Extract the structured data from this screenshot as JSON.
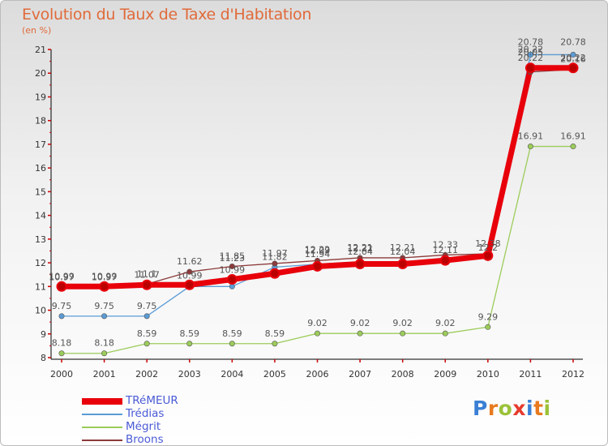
{
  "header": {
    "title": "Evolution du Taux de Taxe d'Habitation",
    "subtitle": "(en %)"
  },
  "logo": {
    "text": "Proxiti",
    "letter_colors": [
      "#3a7fd4",
      "#e87a1f",
      "#9bc23a",
      "#e63b2e",
      "#3a7fd4",
      "#e87a1f",
      "#9bc23a"
    ]
  },
  "chart_data": {
    "type": "line",
    "title": "Evolution du Taux de Taxe d'Habitation",
    "subtitle": "(en %)",
    "x": [
      "2000",
      "2001",
      "2002",
      "2003",
      "2004",
      "2005",
      "2006",
      "2007",
      "2008",
      "2009",
      "2010",
      "2011",
      "2012"
    ],
    "ylim": [
      8,
      21
    ],
    "yticks": [
      8,
      9,
      10,
      11,
      12,
      13,
      14,
      15,
      16,
      17,
      18,
      19,
      20,
      21
    ],
    "grid": false,
    "legend_position": "bottom-left",
    "series": [
      {
        "name": "TRéMEUR",
        "color": "#e8000b",
        "values": [
          11.0,
          11.0,
          11.07,
          11.07,
          11.3,
          11.55,
          11.85,
          11.95,
          11.95,
          12.1,
          12.3,
          20.22,
          20.22
        ],
        "labels": [
          "",
          "",
          "",
          "",
          "",
          "",
          "",
          "",
          "",
          "",
          "",
          "20.22",
          "20.22"
        ]
      },
      {
        "name": "Trédias",
        "color": "#5b9bd5",
        "values": [
          9.75,
          9.75,
          9.75,
          11.0,
          11.0,
          11.82,
          11.94,
          12.04,
          12.04,
          12.11,
          12.2,
          20.78,
          20.78
        ],
        "labels": [
          "9.75",
          "9.75",
          "9.75",
          "",
          "",
          "11.82",
          "11.94",
          "12.04",
          "12.04",
          "12.11",
          "12.2",
          "20.78",
          "20.78"
        ]
      },
      {
        "name": "Mégrit",
        "color": "#9ccc5a",
        "values": [
          8.18,
          8.18,
          8.59,
          8.59,
          8.59,
          8.59,
          9.02,
          9.02,
          9.02,
          9.02,
          9.29,
          16.91,
          16.91
        ],
        "labels": [
          "8.18",
          "8.18",
          "8.59",
          "8.59",
          "8.59",
          "8.59",
          "9.02",
          "9.02",
          "9.02",
          "9.02",
          "9.29",
          "16.91",
          "16.91"
        ]
      },
      {
        "name": "Broons",
        "color": "#8c3a3a",
        "values": [
          10.99,
          10.99,
          11.1,
          11.62,
          11.85,
          11.97,
          12.09,
          12.21,
          12.21,
          12.33,
          12.38,
          20.05,
          20.16
        ],
        "labels": [
          "10.99",
          "10.99",
          "11.1",
          "11.62",
          "11.85",
          "11.97",
          "12.09",
          "12.21",
          "12.21",
          "12.33",
          "12.38",
          "20.05",
          "20.16"
        ]
      }
    ],
    "extra_labels": [
      "10.97",
      "10.97",
      "11.07",
      "10.99",
      "10.99",
      "11.23",
      "12.22",
      "12.22",
      "20.22"
    ]
  }
}
